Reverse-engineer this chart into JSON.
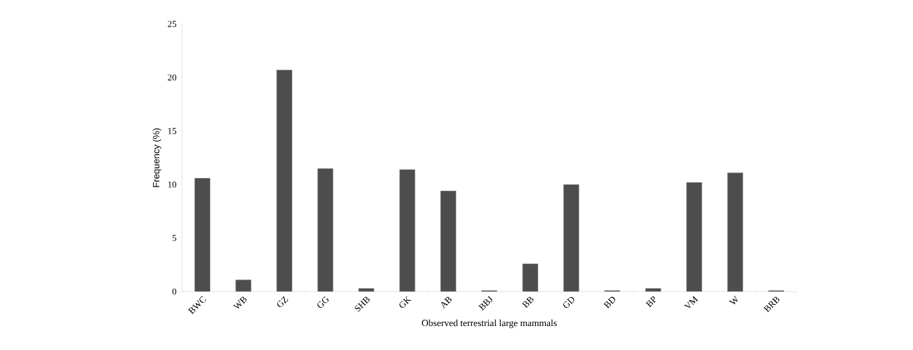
{
  "chart_data": {
    "type": "bar",
    "xlabel": "Observed terrestrial large mammals",
    "ylabel": "Frequency (%)",
    "categories": [
      "BWC",
      "WB",
      "GZ",
      "GG",
      "SHB",
      "GK",
      "AB",
      "BBJ",
      "BB",
      "GD",
      "BD",
      "BP",
      "VM",
      "W",
      "BRB"
    ],
    "values": [
      10.6,
      1.1,
      20.7,
      11.5,
      0.3,
      11.4,
      9.4,
      0.1,
      2.6,
      10.0,
      0.1,
      0.3,
      10.2,
      11.1,
      0.1
    ],
    "color": "#4d4d4d",
    "ylim": [
      0,
      25
    ],
    "yticks": [
      0,
      5,
      10,
      15,
      20,
      25
    ]
  }
}
